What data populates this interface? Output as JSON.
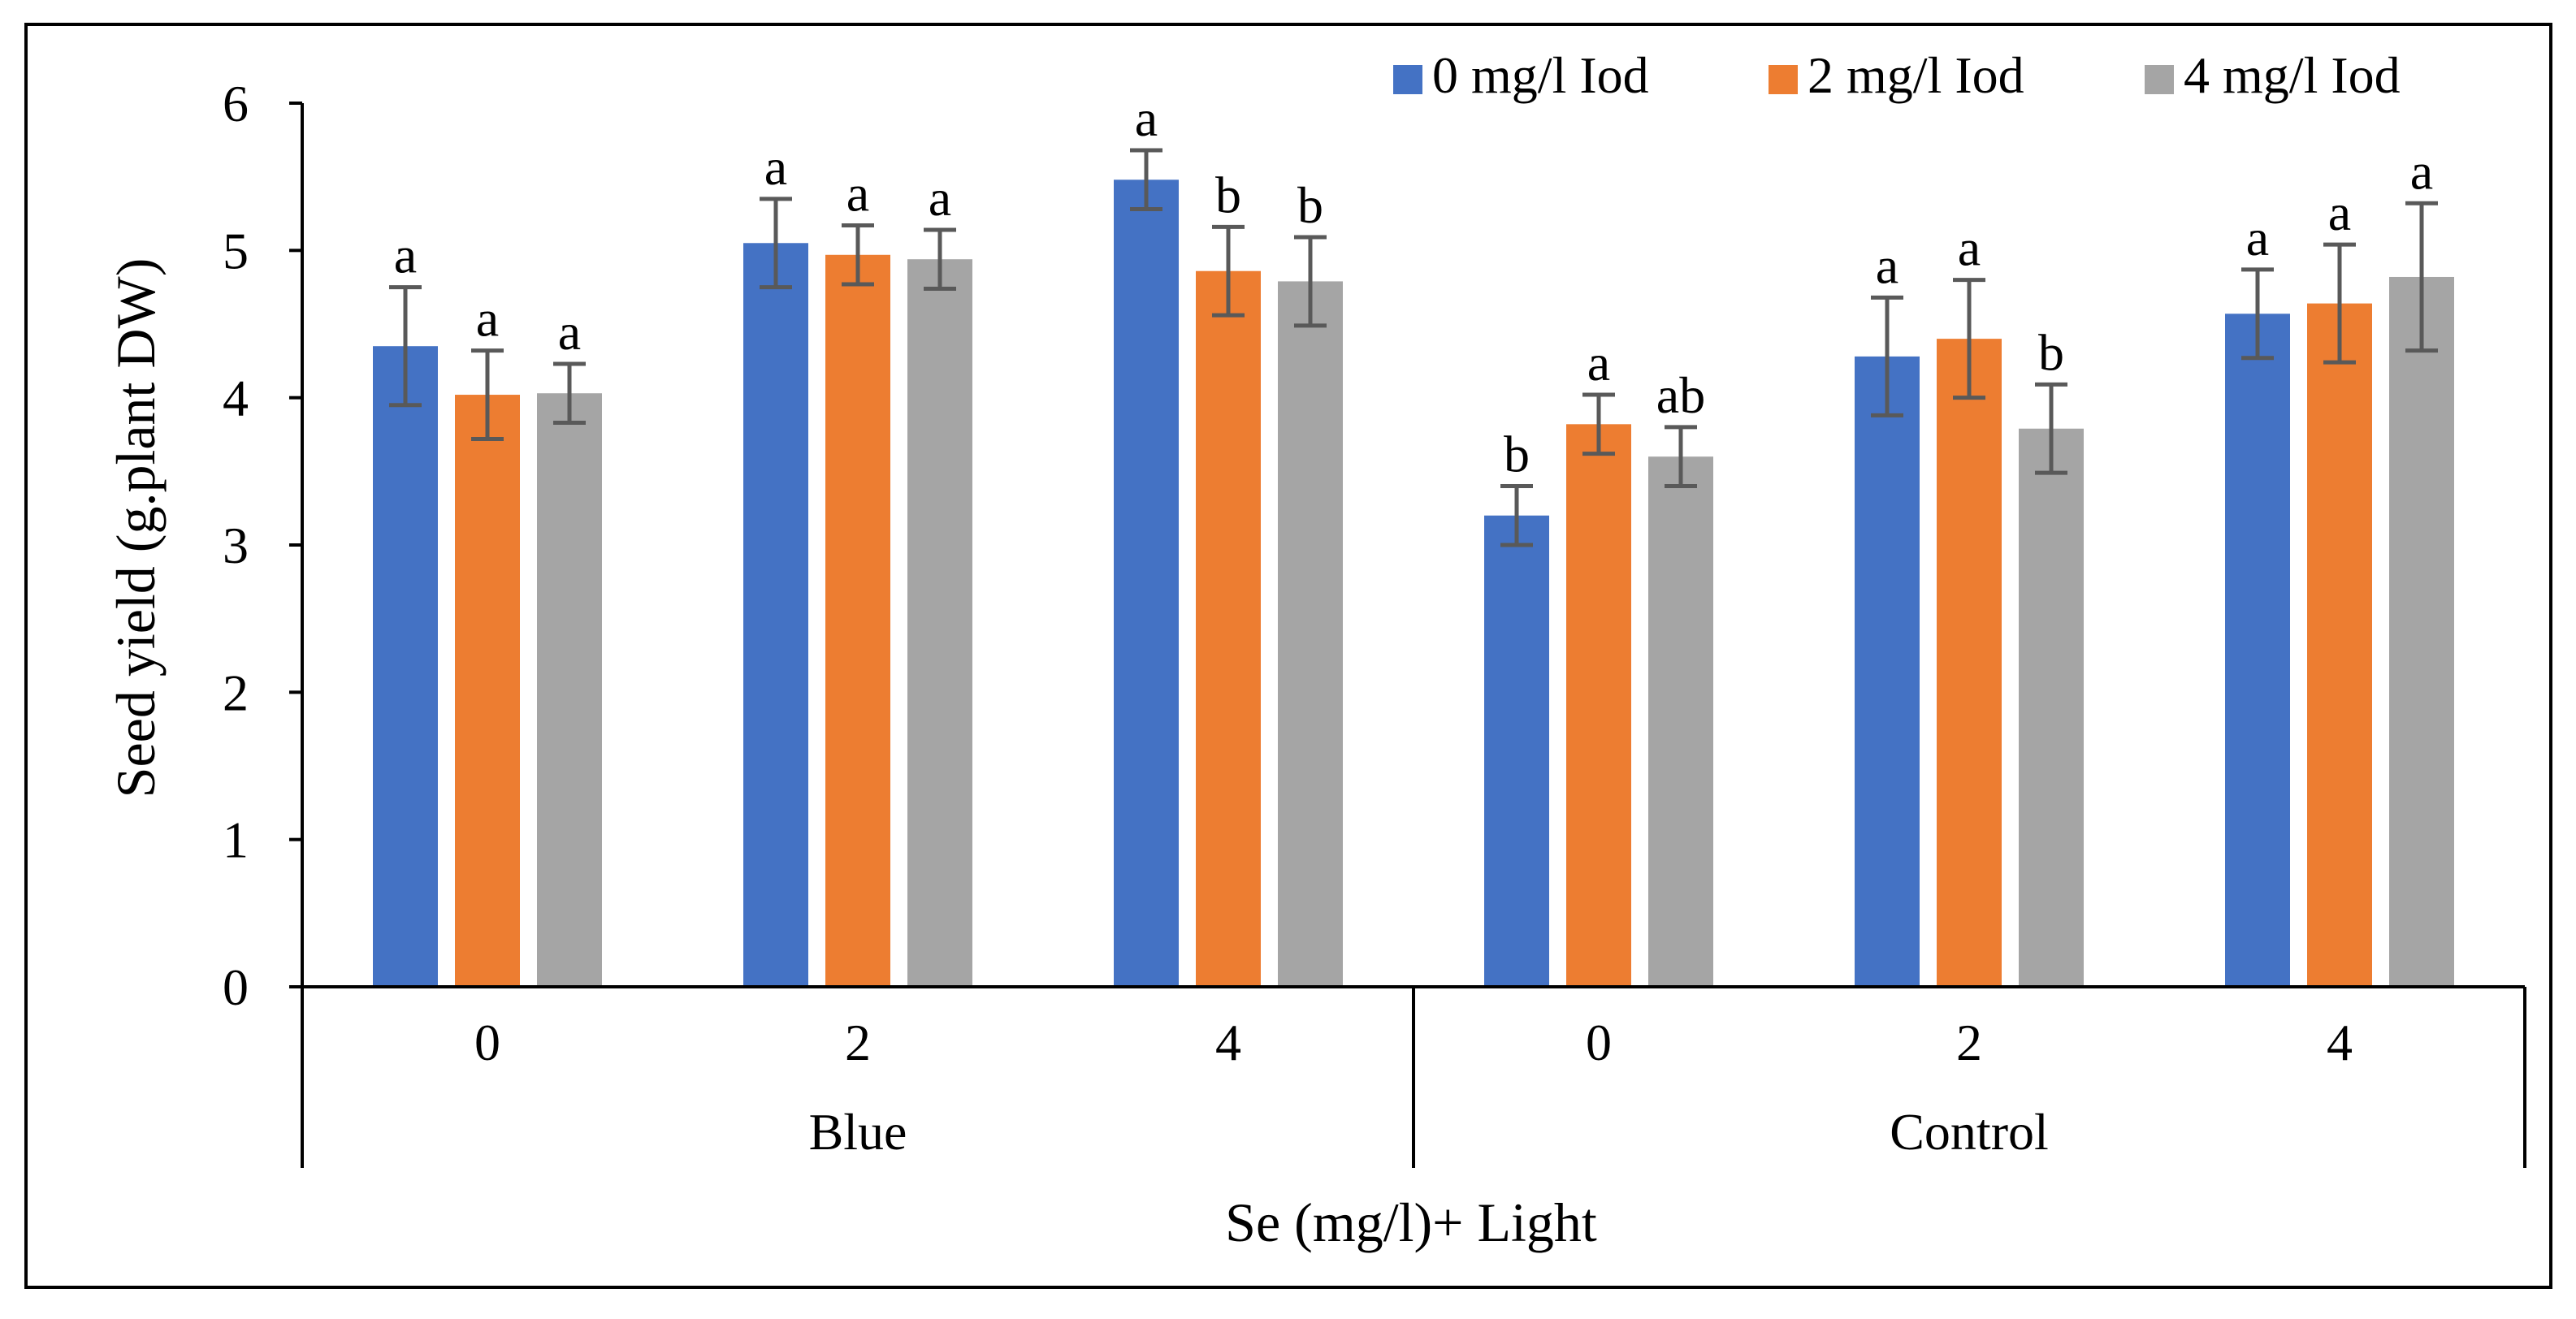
{
  "chart_data": {
    "type": "bar",
    "title": "",
    "ylabel": "Seed yield (g.plant DW)",
    "xlabel": "Se (mg/l)+ Light",
    "ylim": [
      0,
      6
    ],
    "y_ticks": [
      "0",
      "1",
      "2",
      "3",
      "4",
      "5",
      "6"
    ],
    "groups": [
      {
        "name": "Blue",
        "categories": [
          "0",
          "2",
          "4"
        ]
      },
      {
        "name": "Control",
        "categories": [
          "0",
          "2",
          "4"
        ]
      }
    ],
    "categories": [
      "0",
      "2",
      "4",
      "0",
      "2",
      "4"
    ],
    "legend_position": "top-right",
    "series": [
      {
        "name": "0 mg/l Iod",
        "color": "#4472C4",
        "values": [
          4.35,
          5.05,
          5.48,
          3.2,
          4.28,
          4.57
        ],
        "errors": [
          0.4,
          0.3,
          0.2,
          0.2,
          0.4,
          0.3
        ],
        "letters": [
          "a",
          "a",
          "a",
          "b",
          "a",
          "a"
        ]
      },
      {
        "name": "2 mg/l Iod",
        "color": "#ED7D31",
        "values": [
          4.02,
          4.97,
          4.86,
          3.82,
          4.4,
          4.64
        ],
        "errors": [
          0.3,
          0.2,
          0.3,
          0.2,
          0.4,
          0.4
        ],
        "letters": [
          "a",
          "a",
          "b",
          "a",
          "a",
          "a"
        ]
      },
      {
        "name": "4 mg/l Iod",
        "color": "#A5A5A5",
        "values": [
          4.03,
          4.94,
          4.79,
          3.6,
          3.79,
          4.82
        ],
        "errors": [
          0.2,
          0.2,
          0.3,
          0.2,
          0.3,
          0.5
        ],
        "letters": [
          "a",
          "a",
          "b",
          "ab",
          "b",
          "a"
        ]
      }
    ]
  }
}
